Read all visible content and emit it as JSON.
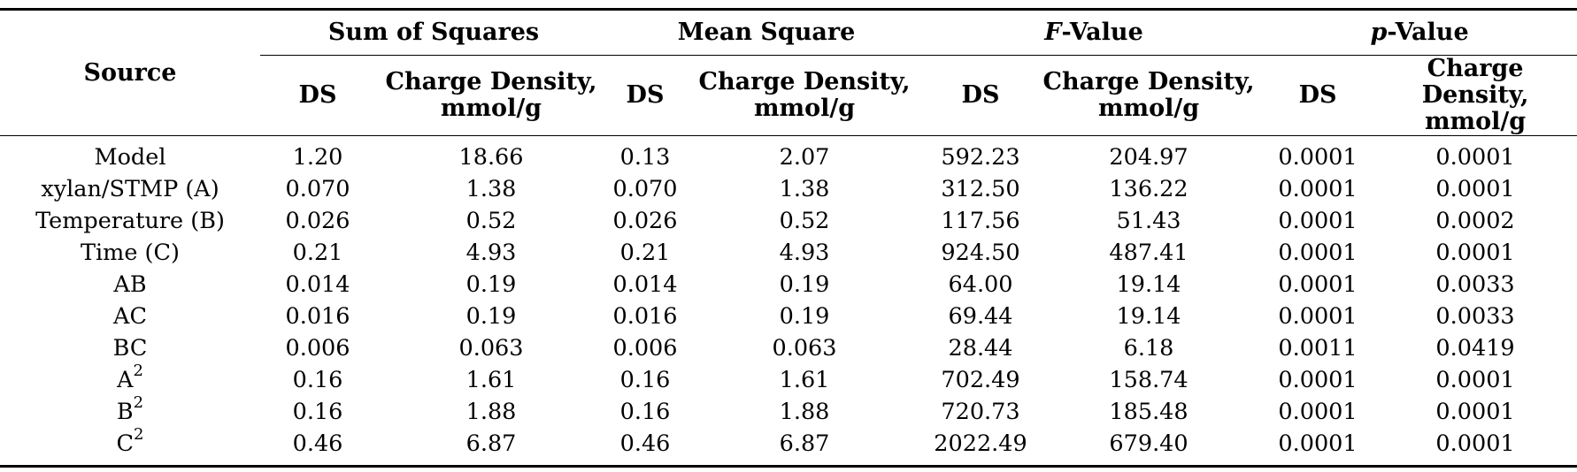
{
  "table": {
    "source_header": "Source",
    "groups": [
      {
        "pre": "",
        "italic": "",
        "post": "Sum of Squares"
      },
      {
        "pre": "",
        "italic": "",
        "post": "Mean Square"
      },
      {
        "pre": "",
        "italic": "F",
        "post": "-Value"
      },
      {
        "pre": "",
        "italic": "p",
        "post": "-Value"
      }
    ],
    "sub_ds": "DS",
    "sub_cd_line1": "Charge Density,",
    "sub_cd_line2": "mmol/g",
    "rows": [
      {
        "source": "Model",
        "sup": "",
        "vals": [
          "1.20",
          "18.66",
          "0.13",
          "2.07",
          "592.23",
          "204.97",
          "0.0001",
          "0.0001"
        ]
      },
      {
        "source": "xylan/STMP (A)",
        "sup": "",
        "vals": [
          "0.070",
          "1.38",
          "0.070",
          "1.38",
          "312.50",
          "136.22",
          "0.0001",
          "0.0001"
        ]
      },
      {
        "source": "Temperature (B)",
        "sup": "",
        "vals": [
          "0.026",
          "0.52",
          "0.026",
          "0.52",
          "117.56",
          "51.43",
          "0.0001",
          "0.0002"
        ]
      },
      {
        "source": "Time (C)",
        "sup": "",
        "vals": [
          "0.21",
          "4.93",
          "0.21",
          "4.93",
          "924.50",
          "487.41",
          "0.0001",
          "0.0001"
        ]
      },
      {
        "source": "AB",
        "sup": "",
        "vals": [
          "0.014",
          "0.19",
          "0.014",
          "0.19",
          "64.00",
          "19.14",
          "0.0001",
          "0.0033"
        ]
      },
      {
        "source": "AC",
        "sup": "",
        "vals": [
          "0.016",
          "0.19",
          "0.016",
          "0.19",
          "69.44",
          "19.14",
          "0.0001",
          "0.0033"
        ]
      },
      {
        "source": "BC",
        "sup": "",
        "vals": [
          "0.006",
          "0.063",
          "0.006",
          "0.063",
          "28.44",
          "6.18",
          "0.0011",
          "0.0419"
        ]
      },
      {
        "source": "A",
        "sup": "2",
        "vals": [
          "0.16",
          "1.61",
          "0.16",
          "1.61",
          "702.49",
          "158.74",
          "0.0001",
          "0.0001"
        ]
      },
      {
        "source": "B",
        "sup": "2",
        "vals": [
          "0.16",
          "1.88",
          "0.16",
          "1.88",
          "720.73",
          "185.48",
          "0.0001",
          "0.0001"
        ]
      },
      {
        "source": "C",
        "sup": "2",
        "vals": [
          "0.46",
          "6.87",
          "0.46",
          "6.87",
          "2022.49",
          "679.40",
          "0.0001",
          "0.0001"
        ]
      }
    ]
  }
}
